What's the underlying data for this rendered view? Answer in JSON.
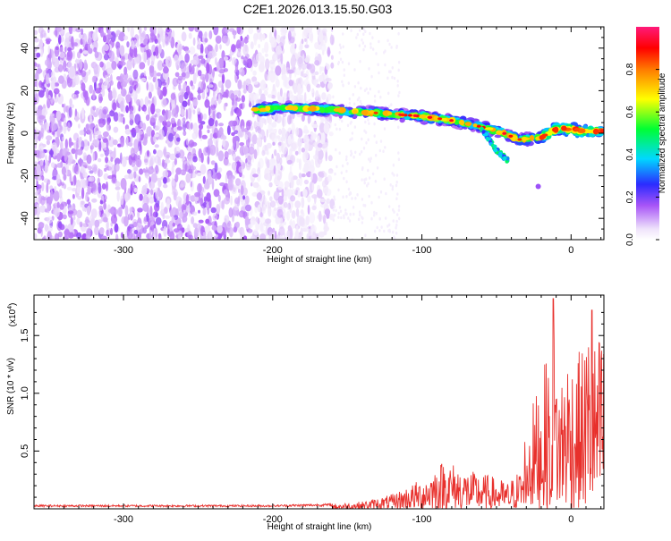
{
  "figure": {
    "title": "C2E1.2026.013.15.50.G03"
  },
  "chart_data": [
    {
      "type": "heatmap",
      "xlabel": "Height of straight line (km)",
      "ylabel": "Frequency (Hz)",
      "xlim": [
        -360,
        22
      ],
      "ylim": [
        -50,
        50
      ],
      "x_ticks": [
        -300,
        -200,
        -100,
        0
      ],
      "y_ticks": [
        -40,
        -20,
        0,
        20,
        40
      ],
      "x_tick_labels": [
        "-300",
        "-200",
        "-100",
        "0"
      ],
      "y_tick_labels": [
        "-40",
        "-20",
        "0",
        "20",
        "40"
      ],
      "grid": false,
      "colorbar": {
        "label": "Normalized spectral amplitude",
        "range": [
          0,
          1
        ],
        "ticks": [
          0.0,
          0.2,
          0.4,
          0.6,
          0.8
        ],
        "tick_labels": [
          "0.0",
          "0.2",
          "0.4",
          "0.6",
          "0.8"
        ],
        "colormap": "rainbow (white-violet-blue-cyan-green-yellow-red-magenta)"
      },
      "ridge": {
        "description": "strong spectral ridge",
        "points": [
          {
            "x": -212,
            "y": 11
          },
          {
            "x": -190,
            "y": 12
          },
          {
            "x": -160,
            "y": 11
          },
          {
            "x": -140,
            "y": 10
          },
          {
            "x": -120,
            "y": 9
          },
          {
            "x": -100,
            "y": 8
          },
          {
            "x": -80,
            "y": 6
          },
          {
            "x": -60,
            "y": 3
          },
          {
            "x": -45,
            "y": 0
          },
          {
            "x": -35,
            "y": -3
          },
          {
            "x": -20,
            "y": -2
          },
          {
            "x": -10,
            "y": 2
          },
          {
            "x": 0,
            "y": 2
          },
          {
            "x": 10,
            "y": 1
          },
          {
            "x": 22,
            "y": 1
          }
        ],
        "branch": [
          {
            "x": -60,
            "y": 2
          },
          {
            "x": -50,
            "y": -8
          },
          {
            "x": -42,
            "y": -13
          }
        ]
      }
    },
    {
      "type": "line",
      "xlabel": "Height of straight line (km)",
      "ylabel": "SNR (10 * v/v)",
      "y_multiplier_label": "(x10",
      "y_multiplier_exp": "4",
      "y_multiplier_close": ")",
      "xlim": [
        -360,
        22
      ],
      "ylim": [
        0,
        1.85
      ],
      "x_ticks": [
        -300,
        -200,
        -100,
        0
      ],
      "y_ticks": [
        0.5,
        1.0,
        1.5
      ],
      "x_tick_labels": [
        "-300",
        "-200",
        "-100",
        "0"
      ],
      "y_tick_labels": [
        "0.5",
        "1.0",
        "1.5"
      ],
      "grid": false,
      "series": [
        {
          "color": "#e8302c",
          "envelope": [
            {
              "x": -360,
              "y": 0.03
            },
            {
              "x": -250,
              "y": 0.03
            },
            {
              "x": -200,
              "y": 0.03
            },
            {
              "x": -160,
              "y": 0.04
            },
            {
              "x": -140,
              "y": 0.06
            },
            {
              "x": -120,
              "y": 0.12
            },
            {
              "x": -100,
              "y": 0.25
            },
            {
              "x": -85,
              "y": 0.42
            },
            {
              "x": -70,
              "y": 0.32
            },
            {
              "x": -55,
              "y": 0.28
            },
            {
              "x": -42,
              "y": 0.22
            },
            {
              "x": -33,
              "y": 0.35
            },
            {
              "x": -30,
              "y": 0.78
            },
            {
              "x": -25,
              "y": 0.9
            },
            {
              "x": -20,
              "y": 1.1
            },
            {
              "x": -15,
              "y": 1.3
            },
            {
              "x": -12,
              "y": 1.55
            },
            {
              "x": -8,
              "y": 1.1
            },
            {
              "x": -3,
              "y": 1.35
            },
            {
              "x": 3,
              "y": 1.25
            },
            {
              "x": 8,
              "y": 1.35
            },
            {
              "x": 12,
              "y": 1.55
            },
            {
              "x": 16,
              "y": 1.4
            },
            {
              "x": 22,
              "y": 1.5
            }
          ],
          "peaks": [
            {
              "x": -12,
              "y": 1.82
            },
            {
              "x": 14,
              "y": 1.72
            }
          ]
        }
      ]
    }
  ]
}
